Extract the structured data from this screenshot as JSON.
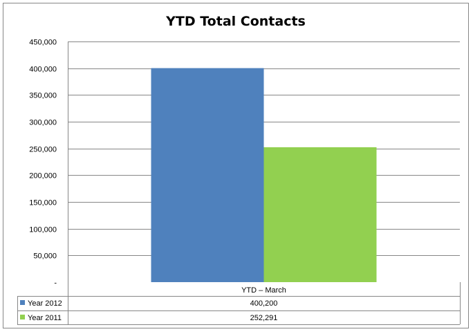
{
  "chart_data": {
    "type": "bar",
    "title": "YTD Total Contacts",
    "categories": [
      "YTD – March"
    ],
    "series": [
      {
        "name": "Year 2012",
        "values": [
          400200
        ],
        "value_labels": [
          "400,200"
        ],
        "color": "#4f81bd"
      },
      {
        "name": "Year 2011",
        "values": [
          252291
        ],
        "value_labels": [
          "252,291"
        ],
        "color": "#92d050"
      }
    ],
    "ylim": [
      0,
      450000
    ],
    "yticks": [
      "-",
      "50,000",
      "100,000",
      "150,000",
      "200,000",
      "250,000",
      "300,000",
      "350,000",
      "400,000",
      "450,000"
    ],
    "grid": true,
    "legend": "data-table"
  }
}
